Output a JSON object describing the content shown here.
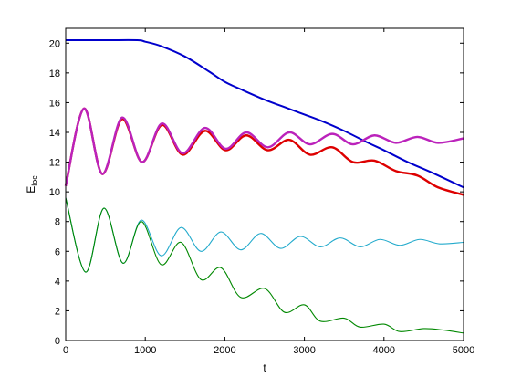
{
  "chart_data": {
    "type": "line",
    "title": "",
    "xlabel": "t",
    "ylabel_main": "E",
    "ylabel_sub": "loc",
    "xlim": [
      0,
      5000
    ],
    "ylim": [
      0,
      21
    ],
    "xticks": [
      0,
      1000,
      2000,
      3000,
      4000,
      5000
    ],
    "yticks": [
      0,
      2,
      4,
      6,
      8,
      10,
      12,
      14,
      16,
      18,
      20
    ],
    "grid": false,
    "legend": "none",
    "series": [
      {
        "color": "#0000cc",
        "x": [
          0,
          500,
          900,
          1000,
          1200,
          1500,
          1800,
          2000,
          2200,
          2500,
          2800,
          3000,
          3200,
          3500,
          3800,
          4000,
          4300,
          4600,
          5000
        ],
        "y": [
          20.2,
          20.2,
          20.2,
          20.1,
          19.8,
          19.1,
          18.1,
          17.4,
          16.9,
          16.2,
          15.6,
          15.2,
          14.8,
          14.1,
          13.3,
          12.8,
          12.0,
          11.3,
          10.3
        ]
      },
      {
        "color": "#dd0000",
        "x": [
          0,
          230,
          460,
          710,
          960,
          1210,
          1470,
          1750,
          2010,
          2270,
          2540,
          2810,
          3070,
          3350,
          3610,
          3880,
          4150,
          4420,
          4680,
          5000
        ],
        "y": [
          10.4,
          15.6,
          11.2,
          14.9,
          12.0,
          14.5,
          12.5,
          14.1,
          12.8,
          13.8,
          12.8,
          13.5,
          12.5,
          13.0,
          12.0,
          12.1,
          11.4,
          11.1,
          10.3,
          9.8
        ]
      },
      {
        "color": "#bb22bb",
        "x": [
          0,
          230,
          460,
          710,
          960,
          1210,
          1470,
          1750,
          2010,
          2270,
          2540,
          2810,
          3070,
          3350,
          3610,
          3880,
          4150,
          4420,
          4680,
          5000
        ],
        "y": [
          10.4,
          15.6,
          11.2,
          15.0,
          12.0,
          14.6,
          12.6,
          14.3,
          12.9,
          14.0,
          13.0,
          14.0,
          13.2,
          13.9,
          13.2,
          13.8,
          13.3,
          13.7,
          13.3,
          13.6
        ]
      },
      {
        "color": "#22aacc",
        "x": [
          0,
          250,
          480,
          720,
          950,
          1200,
          1450,
          1700,
          1950,
          2200,
          2450,
          2700,
          2950,
          3200,
          3450,
          3700,
          3950,
          4200,
          4450,
          4700,
          5000
        ],
        "y": [
          9.6,
          4.6,
          8.9,
          5.2,
          8.1,
          5.7,
          7.6,
          6.0,
          7.3,
          6.1,
          7.2,
          6.2,
          7.0,
          6.3,
          6.9,
          6.3,
          6.8,
          6.4,
          6.8,
          6.5,
          6.6
        ]
      },
      {
        "color": "#008800",
        "x": [
          0,
          250,
          480,
          720,
          950,
          1200,
          1450,
          1700,
          1950,
          2200,
          2500,
          2750,
          3000,
          3200,
          3500,
          3700,
          4000,
          4200,
          4500,
          4750,
          5000
        ],
        "y": [
          9.6,
          4.6,
          8.9,
          5.2,
          8.0,
          5.1,
          6.6,
          4.1,
          4.9,
          2.9,
          3.5,
          1.9,
          2.4,
          1.3,
          1.5,
          0.9,
          1.1,
          0.6,
          0.8,
          0.7,
          0.5
        ]
      }
    ]
  }
}
